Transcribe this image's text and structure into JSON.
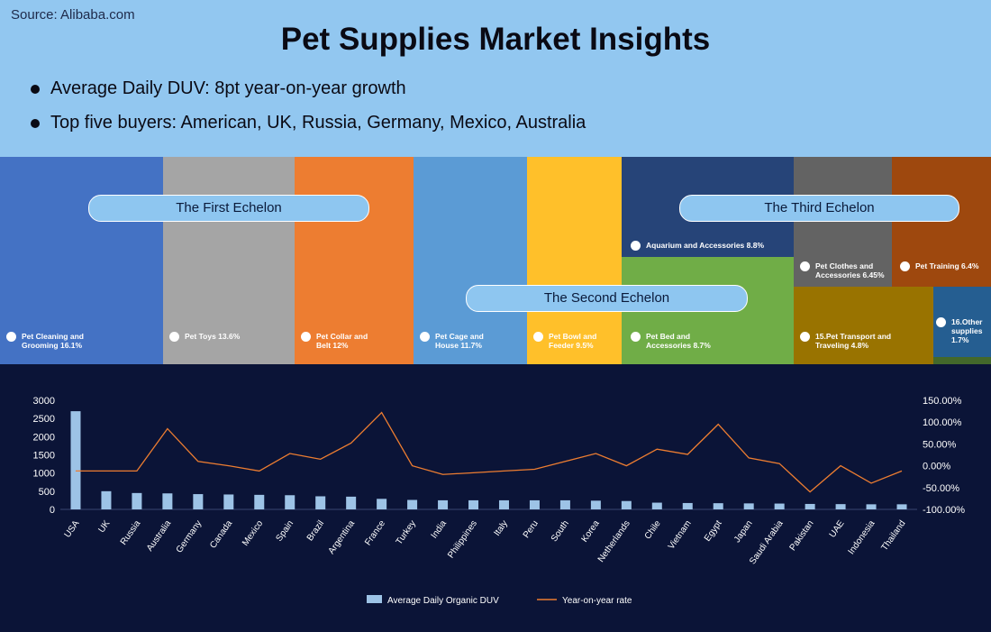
{
  "header": {
    "source": "Source: Alibaba.com",
    "title": "Pet Supplies Market Insights",
    "bullets": [
      "Average Daily DUV: 8pt year-on-year growth",
      "Top five buyers: American, UK, Russia, Germany, Mexico, Australia"
    ]
  },
  "treemap": {
    "echelons": [
      "The First Echelon",
      "The Second Echelon",
      "The Third Echelon"
    ],
    "tiles": [
      {
        "label": "Pet Cleaning and\nGrooming 16.1%",
        "color": "#4472c4"
      },
      {
        "label": "Pet Toys 13.6%",
        "color": "#a5a5a5"
      },
      {
        "label": "Pet Collar and\nBelt 12%",
        "color": "#ed7d31"
      },
      {
        "label": "Pet Cage and\nHouse 11.7%",
        "color": "#5b9bd5"
      },
      {
        "label": "Pet Bowl and\nFeeder 9.5%",
        "color": "#ffc02a"
      },
      {
        "label": "Aquarium and Accessories 8.8%",
        "color": "#264478"
      },
      {
        "label": "Pet Bed and\nAccessories 8.7%",
        "color": "#70ad47"
      },
      {
        "label": "Pet Clothes and\nAccessories 6.45%",
        "color": "#636363"
      },
      {
        "label": "Pet Training 6.4%",
        "color": "#9e480e"
      },
      {
        "label": "15.Pet Transport and\nTraveling 4.8%",
        "color": "#997300"
      },
      {
        "label": "16.Other\nsupplies\n1.7%",
        "color": "#255e91"
      }
    ]
  },
  "chart_data": {
    "type": "bar",
    "categories": [
      "USA",
      "UK",
      "Russia",
      "Australia",
      "Germany",
      "Canada",
      "Mexico",
      "Spain",
      "Brazil",
      "Argentina",
      "France",
      "Turkey",
      "India",
      "Philippines",
      "Italy",
      "Peru",
      "South",
      "Korea",
      "Netherlands",
      "Chile",
      "Vietnam",
      "Egypt",
      "Japan",
      "Saudi Arabia",
      "Pakistan",
      "UAE",
      "Indonesia",
      "Thailand"
    ],
    "series": [
      {
        "name": "Average Daily Organic DUV",
        "type": "bar",
        "axis": "left",
        "color": "#9dc3e6",
        "values": [
          2700,
          500,
          450,
          440,
          420,
          410,
          400,
          390,
          360,
          350,
          290,
          260,
          250,
          250,
          250,
          250,
          250,
          240,
          230,
          185,
          175,
          170,
          165,
          160,
          150,
          145,
          140,
          140
        ]
      },
      {
        "name": "Year-on-year rate",
        "type": "line",
        "axis": "right",
        "color": "#ed7d31",
        "values": [
          -12,
          -12,
          -12,
          85,
          10,
          0,
          -12,
          28,
          15,
          52,
          122,
          0,
          -20,
          -16,
          -12,
          -8,
          10,
          28,
          0,
          38,
          26,
          95,
          18,
          5,
          -60,
          0,
          -40,
          -12
        ]
      }
    ],
    "y_left": {
      "min": 0,
      "max": 3000,
      "ticks": [
        "0",
        "500",
        "1000",
        "1500",
        "2000",
        "2500",
        "3000"
      ]
    },
    "y_right": {
      "min": -100,
      "max": 150,
      "ticks": [
        "-100.00%",
        "-50.00%",
        "0.00%",
        "50.00%",
        "100.00%",
        "150.00%"
      ]
    },
    "legend": "bottom",
    "colors": {
      "background": "#0b1437",
      "axis_text": "#ffffff"
    }
  }
}
